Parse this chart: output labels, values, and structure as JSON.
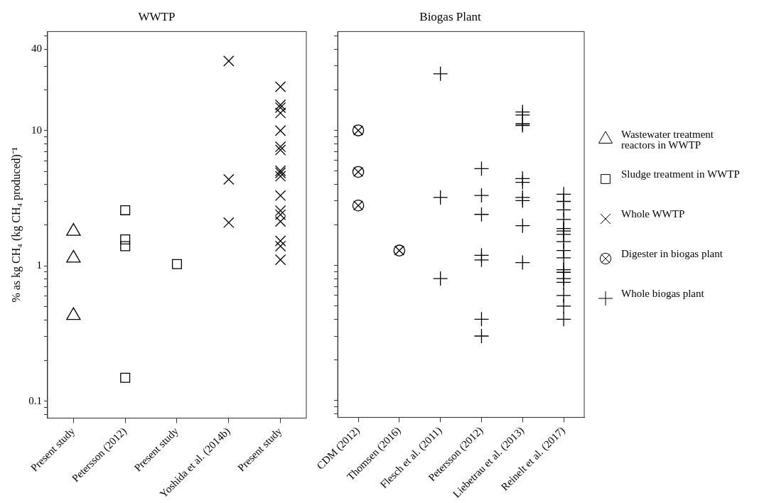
{
  "chart_data": [
    {
      "type": "scatter",
      "title": "WWTP",
      "ylabel": "% as kg CH₄ (kg CH₄ produced)⁻¹",
      "log": true,
      "grid": false,
      "legend": "right",
      "categories": [
        "Present study",
        "Petersson (2012)",
        "Present study",
        "Yoshida et al. (2014b)",
        "Present study"
      ],
      "ylim": [
        0.075,
        54
      ],
      "yticks": [
        {
          "value": 0.08,
          "label": null
        },
        {
          "value": 0.09,
          "label": null
        },
        0.1,
        {
          "value": 0.2,
          "label": null
        },
        {
          "value": 0.3,
          "label": null
        },
        {
          "value": 0.4,
          "label": null
        },
        {
          "value": 0.5,
          "label": null
        },
        {
          "value": 0.6,
          "label": null
        },
        {
          "value": 0.7,
          "label": null
        },
        {
          "value": 0.8,
          "label": null
        },
        {
          "value": 0.9,
          "label": null
        },
        1,
        {
          "value": 2,
          "label": null
        },
        {
          "value": 3,
          "label": null
        },
        {
          "value": 4,
          "label": null
        },
        {
          "value": 5,
          "label": null
        },
        {
          "value": 6,
          "label": null
        },
        {
          "value": 7,
          "label": null
        },
        {
          "value": 8,
          "label": null
        },
        {
          "value": 9,
          "label": null
        },
        10,
        {
          "value": 20,
          "label": null
        },
        {
          "value": 30,
          "label": null
        },
        40,
        {
          "value": 50,
          "label": null
        }
      ],
      "series": [
        {
          "name": "Wastewater treatment reactors in WWTP",
          "color": "#000000",
          "marker": "triangle",
          "x": [
            "Present study",
            "Present study",
            "Present study"
          ],
          "values": [
            1.8,
            1.14,
            0.43
          ]
        },
        {
          "name": "Sludge treatment in WWTP",
          "color": "#000000",
          "marker": "square",
          "x": [
            "Petersson (2012)",
            "Petersson (2012)",
            "Petersson (2012)",
            "Petersson (2012)"
          ],
          "values": [
            2.58,
            1.57,
            1.4,
            0.149
          ]
        },
        {
          "color": "#000000",
          "marker": "square",
          "values": [
            null,
            null,
            1.03,
            null,
            null
          ]
        },
        {
          "name": "Whole WWTP",
          "color": "#000000",
          "marker": "x",
          "x": [
            "Yoshida et al. (2014b)",
            "Yoshida et al. (2014b)",
            "Yoshida et al. (2014b)"
          ],
          "values": [
            32.7,
            4.36,
            2.09
          ]
        },
        {
          "color": "#000000",
          "marker": "x",
          "values": [
            null,
            null,
            null,
            null,
            21.1
          ]
        },
        {
          "color": "#000000",
          "marker": "x",
          "values": [
            null,
            null,
            null,
            null,
            15.5
          ]
        },
        {
          "color": "#000000",
          "marker": "x",
          "values": [
            null,
            null,
            null,
            null,
            14.8
          ]
        },
        {
          "color": "#000000",
          "marker": "x",
          "values": [
            null,
            null,
            null,
            null,
            13.5
          ]
        },
        {
          "color": "#000000",
          "marker": "x",
          "values": [
            null,
            null,
            null,
            null,
            10
          ]
        },
        {
          "color": "#000000",
          "marker": "x",
          "values": [
            null,
            null,
            null,
            null,
            7.6
          ]
        },
        {
          "color": "#000000",
          "marker": "x",
          "values": [
            null,
            null,
            null,
            null,
            7.2
          ]
        },
        {
          "color": "#000000",
          "marker": "x",
          "values": [
            null,
            null,
            null,
            null,
            5.05
          ]
        },
        {
          "color": "#000000",
          "marker": "x",
          "values": [
            null,
            null,
            null,
            null,
            4.87
          ]
        },
        {
          "color": "#000000",
          "marker": "x",
          "values": [
            null,
            null,
            null,
            null,
            4.6
          ]
        },
        {
          "color": "#000000",
          "marker": "x",
          "values": [
            null,
            null,
            null,
            null,
            3.31
          ]
        },
        {
          "color": "#000000",
          "marker": "x",
          "values": [
            null,
            null,
            null,
            null,
            2.56
          ]
        },
        {
          "color": "#000000",
          "marker": "x",
          "values": [
            null,
            null,
            null,
            null,
            2.39
          ]
        },
        {
          "color": "#000000",
          "marker": "x",
          "values": [
            null,
            null,
            null,
            null,
            2.13
          ]
        },
        {
          "color": "#000000",
          "marker": "x",
          "values": [
            null,
            null,
            null,
            null,
            1.53
          ]
        },
        {
          "color": "#000000",
          "marker": "x",
          "values": [
            null,
            null,
            null,
            null,
            1.4
          ]
        },
        {
          "color": "#000000",
          "marker": "x",
          "values": [
            null,
            null,
            null,
            null,
            1.11
          ]
        }
      ]
    },
    {
      "type": "scatter",
      "title": "Biogas Plant",
      "log": true,
      "grid": false,
      "legend": "right",
      "tick_labels": "x",
      "categories": [
        "CDM (2012)",
        "Thomsen (2016)",
        "Flesch et al. (2011)",
        "Petersson (2012)",
        "Liebetrau et al. (2013)",
        "Reinelt et al. (2017)"
      ],
      "ylim": [
        0.075,
        54
      ],
      "yticks": [
        {
          "value": 0.08,
          "label": null
        },
        {
          "value": 0.09,
          "label": null
        },
        {
          "value": 0.1,
          "label": null
        },
        {
          "value": 0.2,
          "label": null
        },
        {
          "value": 0.3,
          "label": null
        },
        {
          "value": 0.4,
          "label": null
        },
        {
          "value": 0.5,
          "label": null
        },
        {
          "value": 0.6,
          "label": null
        },
        {
          "value": 0.7,
          "label": null
        },
        {
          "value": 0.8,
          "label": null
        },
        {
          "value": 0.9,
          "label": null
        },
        {
          "value": 1,
          "label": null
        },
        {
          "value": 2,
          "label": null
        },
        {
          "value": 3,
          "label": null
        },
        {
          "value": 4,
          "label": null
        },
        {
          "value": 5,
          "label": null
        },
        {
          "value": 6,
          "label": null
        },
        {
          "value": 7,
          "label": null
        },
        {
          "value": 8,
          "label": null
        },
        {
          "value": 9,
          "label": null
        },
        {
          "value": 10,
          "label": null
        },
        {
          "value": 20,
          "label": null
        },
        {
          "value": 30,
          "label": null
        },
        {
          "value": 40,
          "label": null
        },
        {
          "value": 50,
          "label": null
        }
      ],
      "series": [
        {
          "name": "Digester in biogas plant",
          "color": "#000000",
          "x": [
            "CDM (2012)",
            "CDM (2012)",
            "CDM (2012)",
            "Thomsen (2016)"
          ],
          "values": [
            10,
            4.93,
            2.78,
            1.29
          ]
        },
        {
          "name": "Whole biogas plant",
          "color": "#000000",
          "marker": "cross",
          "x": [
            "Flesch et al. (2011)",
            "Flesch et al. (2011)",
            "Flesch et al. (2011)",
            "Petersson (2012)",
            "Petersson (2012)",
            "Petersson (2012)",
            "Petersson (2012)",
            "Petersson (2012)",
            "Petersson (2012)",
            "Petersson (2012)",
            "Liebetrau et al. (2013)",
            "Liebetrau et al. (2013)",
            "Liebetrau et al. (2013)",
            "Liebetrau et al. (2013)",
            "Liebetrau et al. (2013)",
            "Liebetrau et al. (2013)",
            "Liebetrau et al. (2013)",
            "Liebetrau et al. (2013)",
            "Liebetrau et al. (2013)",
            "Liebetrau et al. (2013)",
            "Reinelt et al. (2017)",
            "Reinelt et al. (2017)",
            "Reinelt et al. (2017)",
            "Reinelt et al. (2017)",
            "Reinelt et al. (2017)",
            "Reinelt et al. (2017)",
            "Reinelt et al. (2017)",
            "Reinelt et al. (2017)",
            "Reinelt et al. (2017)",
            "Reinelt et al. (2017)",
            "Reinelt et al. (2017)",
            "Reinelt et al. (2017)",
            "Reinelt et al. (2017)",
            "Reinelt et al. (2017)",
            "Reinelt et al. (2017)",
            "Reinelt et al. (2017)",
            "Reinelt et al. (2017)"
          ],
          "values": [
            26.3,
            3.19,
            0.8,
            5.21,
            3.3,
            2.39,
            1.19,
            1.1,
            0.4,
            0.3,
            13.7,
            13,
            11.2,
            10.9,
            4.4,
            4.13,
            3.19,
            3.02,
            1.97,
            1.05,
            3.37,
            2.98,
            2.58,
            2.19,
            1.88,
            1.8,
            1.7,
            1.5,
            1.29,
            1.14,
            0.93,
            0.89,
            0.8,
            0.75,
            0.6,
            0.5,
            0.4
          ]
        }
      ]
    }
  ]
}
